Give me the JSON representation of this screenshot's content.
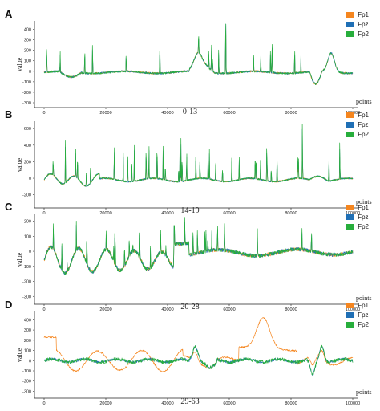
{
  "colors": {
    "Fp1": "#f5861f",
    "Fpz": "#1f6fb5",
    "Fp2": "#27ae3c"
  },
  "chart_data": [
    {
      "panel": "A",
      "caption": "0-13",
      "type": "line",
      "xlabel": "points",
      "ylabel": "value",
      "xlim": [
        0,
        100000
      ],
      "ylim": [
        -300,
        450
      ],
      "xticks": [
        0,
        20000,
        40000,
        60000,
        80000,
        100000
      ],
      "yticks": [
        400,
        300,
        200,
        100,
        0,
        -100,
        -200,
        -300
      ],
      "series": [
        {
          "name": "Fp1"
        },
        {
          "name": "Fpz"
        },
        {
          "name": "Fp2"
        }
      ]
    },
    {
      "panel": "B",
      "caption": "14-19",
      "type": "line",
      "xlabel": "points",
      "ylabel": "value",
      "xlim": [
        0,
        100000
      ],
      "ylim": [
        -300,
        650
      ],
      "xticks": [
        0,
        20000,
        40000,
        60000,
        80000,
        100000
      ],
      "yticks": [
        600,
        400,
        200,
        0,
        -200
      ],
      "series": [
        {
          "name": "Fp1"
        },
        {
          "name": "Fpz"
        },
        {
          "name": "Fp2"
        }
      ]
    },
    {
      "panel": "C",
      "caption": "20-28",
      "type": "line",
      "xlabel": "points",
      "ylabel": "value",
      "xlim": [
        0,
        100000
      ],
      "ylim": [
        -320,
        230
      ],
      "xticks": [
        0,
        20000,
        40000,
        60000,
        80000,
        100000
      ],
      "yticks": [
        200,
        100,
        0,
        -100,
        -200,
        -300
      ],
      "series": [
        {
          "name": "Fp1"
        },
        {
          "name": "Fpz"
        },
        {
          "name": "Fp2"
        }
      ]
    },
    {
      "panel": "D",
      "caption": "29-63",
      "type": "line",
      "xlabel": "points",
      "ylabel": "value",
      "xlim": [
        0,
        100000
      ],
      "ylim": [
        -320,
        450
      ],
      "xticks": [
        0,
        20000,
        40000,
        60000,
        80000,
        100000
      ],
      "yticks": [
        400,
        300,
        200,
        100,
        0,
        -100,
        -200,
        -300
      ],
      "series": [
        {
          "name": "Fp1"
        },
        {
          "name": "Fpz"
        },
        {
          "name": "Fp2"
        }
      ]
    }
  ]
}
